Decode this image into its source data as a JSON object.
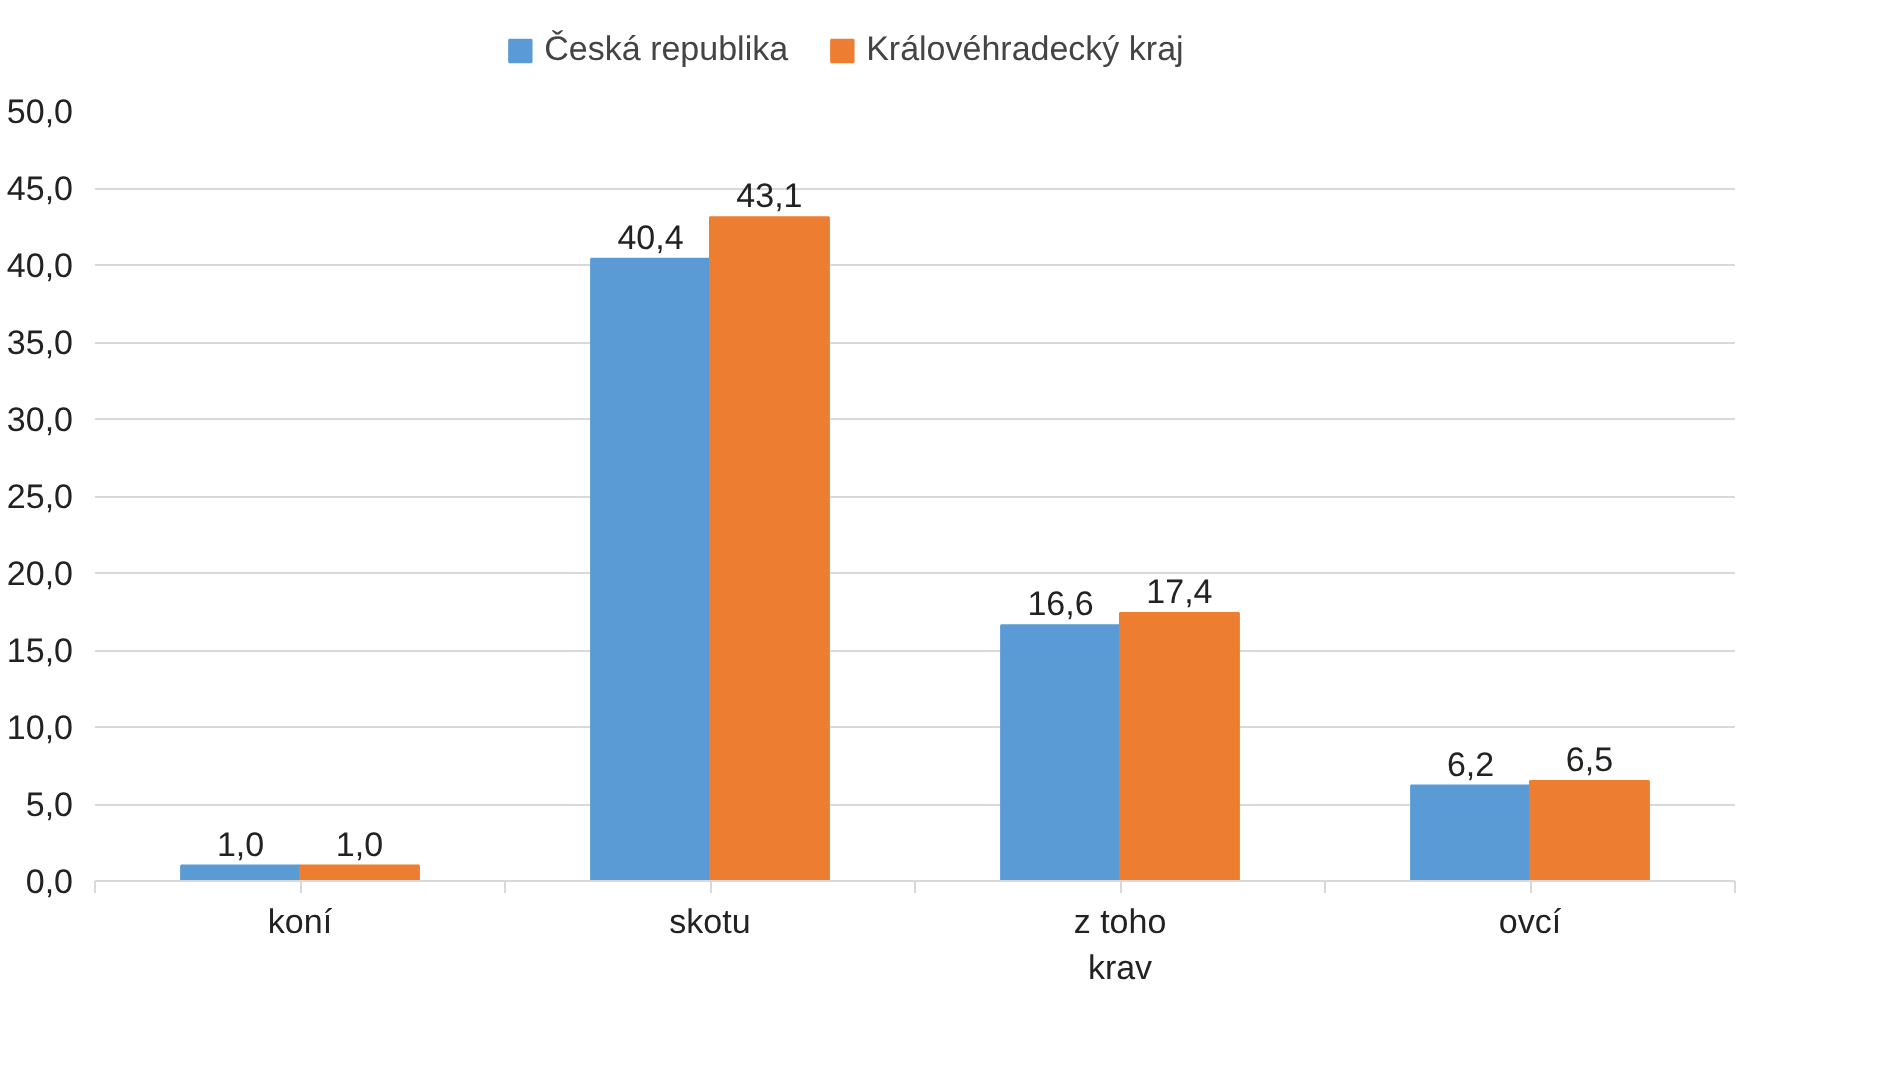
{
  "chart_data": {
    "type": "bar",
    "categories": [
      "koní",
      "skotu",
      "z toho\nkrav",
      "ovcí"
    ],
    "series": [
      {
        "name": "Česká republika",
        "color": "#5b9bd5",
        "values": [
          1.0,
          40.4,
          16.6,
          6.2
        ],
        "value_labels": [
          "1,0",
          "40,4",
          "16,6",
          "6,2"
        ]
      },
      {
        "name": "Královéhradecký kraj",
        "color": "#ed7d31",
        "values": [
          1.0,
          43.1,
          17.4,
          6.5
        ],
        "value_labels": [
          "1,0",
          "43,1",
          "17,4",
          "6,5"
        ]
      }
    ],
    "ylim": [
      0,
      50
    ],
    "yticks": [
      {
        "value": 0,
        "label": "0,0"
      },
      {
        "value": 5,
        "label": "5,0"
      },
      {
        "value": 10,
        "label": "10,0"
      },
      {
        "value": 15,
        "label": "15,0"
      },
      {
        "value": 20,
        "label": "20,0"
      },
      {
        "value": 25,
        "label": "25,0"
      },
      {
        "value": 30,
        "label": "30,0"
      },
      {
        "value": 35,
        "label": "35,0"
      },
      {
        "value": 40,
        "label": "40,0"
      },
      {
        "value": 45,
        "label": "45,0"
      },
      {
        "value": 50,
        "label": "50,0"
      }
    ],
    "grid": "y",
    "legend": "top"
  }
}
